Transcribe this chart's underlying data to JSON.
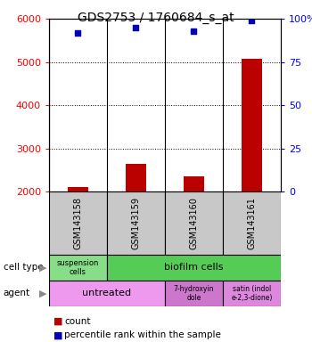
{
  "title": "GDS2753 / 1760684_s_at",
  "samples": [
    "GSM143158",
    "GSM143159",
    "GSM143160",
    "GSM143161"
  ],
  "counts": [
    2100,
    2640,
    2360,
    5080
  ],
  "percentile_ranks": [
    92,
    95,
    93,
    99
  ],
  "ylim_left": [
    2000,
    6000
  ],
  "ylim_right": [
    0,
    100
  ],
  "yticks_left": [
    2000,
    3000,
    4000,
    5000,
    6000
  ],
  "yticks_right": [
    0,
    25,
    50,
    75,
    100
  ],
  "ytick_labels_right": [
    "0",
    "25",
    "50",
    "75",
    "100%"
  ],
  "bar_color": "#bb0000",
  "dot_color": "#0000bb",
  "bar_width": 0.35,
  "sample_bg_color": "#c8c8c8",
  "title_fontsize": 10,
  "tick_fontsize": 8,
  "label_fontsize": 7,
  "cell_type_colors": [
    "#88dd88",
    "#55cc55"
  ],
  "agent_colors_light": "#ee99ee",
  "agent_colors_dark": "#cc77cc",
  "green_light": "#88dd88",
  "green_dark": "#44cc44"
}
